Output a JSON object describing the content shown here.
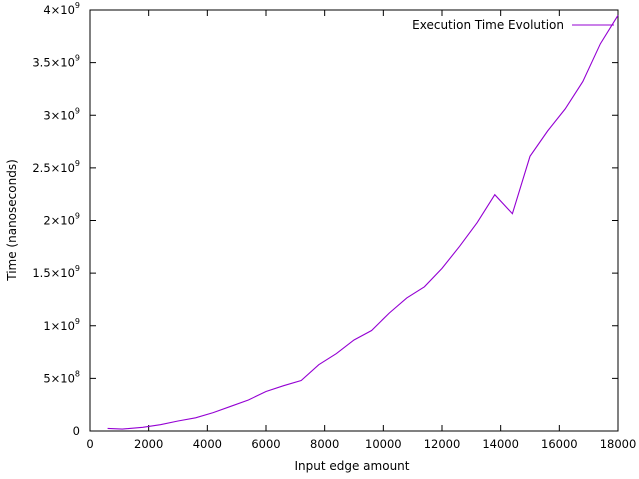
{
  "chart_data": {
    "type": "line",
    "title": "",
    "xlabel": "Input edge amount",
    "ylabel": "Time (nanoseconds)",
    "xlim": [
      0,
      18000
    ],
    "ylim": [
      0,
      4000000000
    ],
    "x_ticks": [
      0,
      2000,
      4000,
      6000,
      8000,
      10000,
      12000,
      14000,
      16000,
      18000
    ],
    "y_ticks": [
      {
        "value": 0,
        "mantissa": "0",
        "exp": ""
      },
      {
        "value": 500000000,
        "mantissa": "5×10",
        "exp": "8"
      },
      {
        "value": 1000000000,
        "mantissa": "1×10",
        "exp": "9"
      },
      {
        "value": 1500000000,
        "mantissa": "1.5×10",
        "exp": "9"
      },
      {
        "value": 2000000000,
        "mantissa": "2×10",
        "exp": "9"
      },
      {
        "value": 2500000000,
        "mantissa": "2.5×10",
        "exp": "9"
      },
      {
        "value": 3000000000,
        "mantissa": "3×10",
        "exp": "9"
      },
      {
        "value": 3500000000,
        "mantissa": "3.5×10",
        "exp": "9"
      },
      {
        "value": 4000000000,
        "mantissa": "4×10",
        "exp": "9"
      }
    ],
    "grid": false,
    "legend_position": "top-right",
    "series": [
      {
        "name": "Execution Time Evolution",
        "color": "#9400d3",
        "points": [
          [
            600,
            25000000
          ],
          [
            1100,
            18000000
          ],
          [
            1800,
            35000000
          ],
          [
            2400,
            60000000
          ],
          [
            3000,
            95000000
          ],
          [
            3600,
            125000000
          ],
          [
            4200,
            175000000
          ],
          [
            4800,
            235000000
          ],
          [
            5400,
            295000000
          ],
          [
            6000,
            375000000
          ],
          [
            6600,
            430000000
          ],
          [
            7200,
            480000000
          ],
          [
            7800,
            630000000
          ],
          [
            8400,
            735000000
          ],
          [
            9000,
            865000000
          ],
          [
            9600,
            955000000
          ],
          [
            10200,
            1120000000
          ],
          [
            10800,
            1265000000
          ],
          [
            11400,
            1370000000
          ],
          [
            12000,
            1545000000
          ],
          [
            12600,
            1755000000
          ],
          [
            13200,
            1980000000
          ],
          [
            13800,
            2245000000
          ],
          [
            14400,
            2065000000
          ],
          [
            15000,
            2610000000
          ],
          [
            15600,
            2850000000
          ],
          [
            16200,
            3060000000
          ],
          [
            16800,
            3320000000
          ],
          [
            17400,
            3680000000
          ],
          [
            18000,
            3950000000
          ]
        ]
      }
    ]
  }
}
